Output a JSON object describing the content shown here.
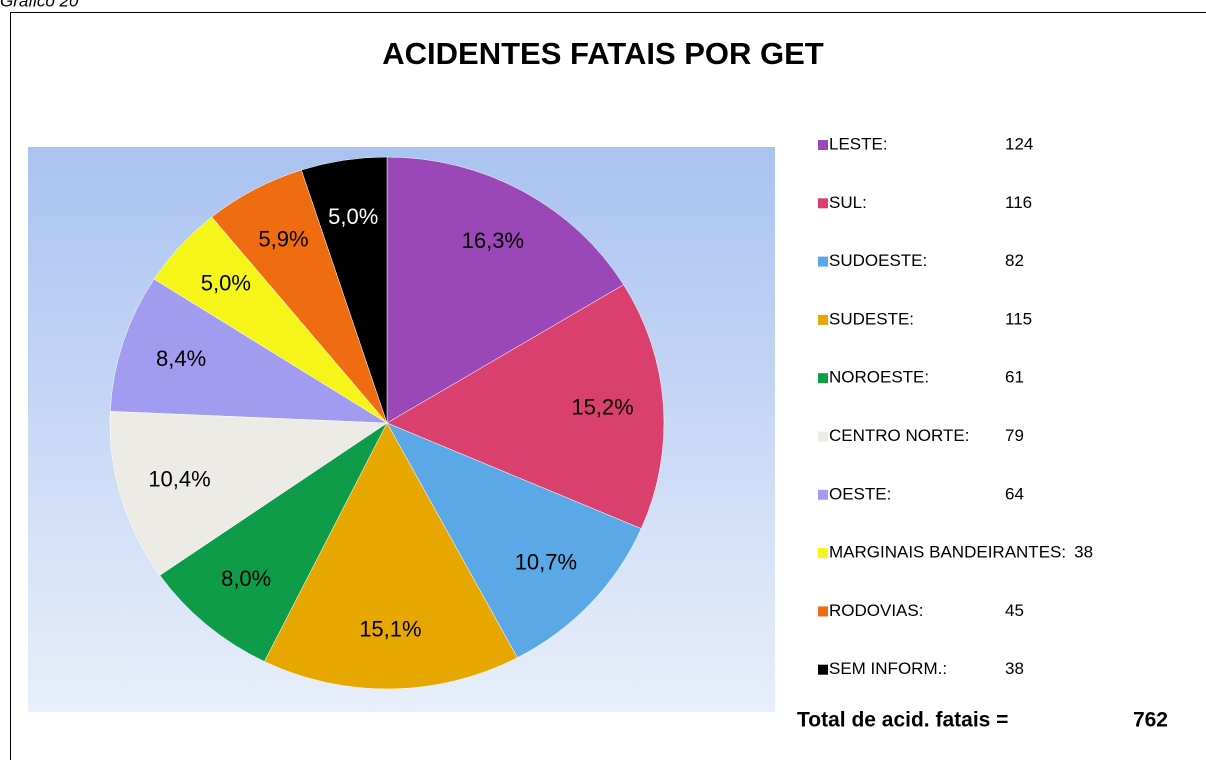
{
  "caption": "Gráfico 20",
  "chart_data": {
    "type": "pie",
    "title": "ACIDENTES FATAIS POR GET",
    "categories": [
      "LESTE:",
      "SUL:",
      "SUDOESTE:",
      "SUDESTE:",
      "NOROESTE:",
      "CENTRO NORTE:",
      "OESTE:",
      "MARGINAIS BANDEIRANTES:",
      "RODOVIAS:",
      "SEM INFORM.:"
    ],
    "values": [
      16.3,
      15.2,
      10.7,
      15.1,
      8.0,
      10.4,
      8.4,
      5.0,
      5.9,
      5.0
    ],
    "value_labels": [
      "16,3%",
      "15,2%",
      "10,7%",
      "15,1%",
      "8,0%",
      "10,4%",
      "8,4%",
      "5,0%",
      "5,9%",
      "5,0%"
    ],
    "counts": [
      124,
      116,
      82,
      115,
      61,
      79,
      64,
      38,
      45,
      38
    ],
    "colors": [
      "#9a48b8",
      "#d9406e",
      "#5aa9e6",
      "#e6a800",
      "#0e9c48",
      "#ecebe6",
      "#a29cf0",
      "#f5f51a",
      "#f06c10",
      "#000000"
    ],
    "total_label": "Total de acid. fatais =",
    "total": 762
  }
}
